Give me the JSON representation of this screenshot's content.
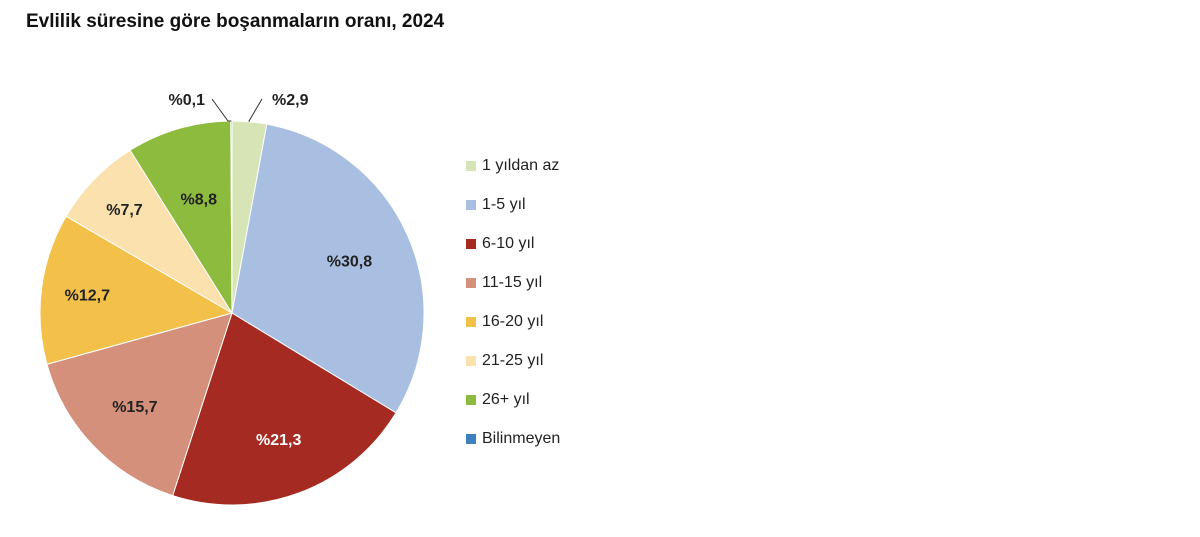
{
  "chart_data": {
    "type": "pie",
    "title": "Evlilik süresine göre boşanmaların oranı, 2024",
    "slices": [
      {
        "label": "1 yıldan az",
        "value": 2.9,
        "value_label": "%2,9",
        "color": "#d7e4b6"
      },
      {
        "label": "1-5 yıl",
        "value": 30.8,
        "value_label": "%30,8",
        "color": "#a9bfe2"
      },
      {
        "label": "6-10 yıl",
        "value": 21.3,
        "value_label": "%21,3",
        "color": "#a52a22"
      },
      {
        "label": "11-15 yıl",
        "value": 15.7,
        "value_label": "%15,7",
        "color": "#d4907b"
      },
      {
        "label": "16-20 yıl",
        "value": 12.7,
        "value_label": "%12,7",
        "color": "#f3c04a"
      },
      {
        "label": "21-25 yıl",
        "value": 7.7,
        "value_label": "%7,7",
        "color": "#fbe1ad"
      },
      {
        "label": "26+ yıl",
        "value": 8.8,
        "value_label": "%8,8",
        "color": "#8dbb3e"
      },
      {
        "label": "Bilinmeyen",
        "value": 0.1,
        "value_label": "%0,1",
        "color": "#3e7fbd"
      }
    ],
    "legend_position": "right"
  }
}
